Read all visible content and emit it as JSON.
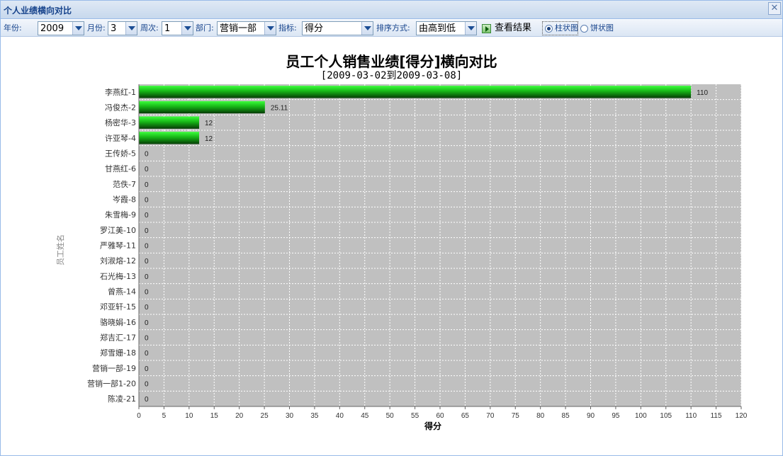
{
  "window": {
    "title": "个人业绩横向对比",
    "close_glyph": "✕"
  },
  "toolbar": {
    "year_label": "年份:",
    "year_value": "2009",
    "month_label": "月份:",
    "month_value": "3",
    "week_label": "周次:",
    "week_value": "1",
    "dept_label": "部门:",
    "dept_value": "营销一部",
    "metric_label": "指标:",
    "metric_value": "得分",
    "sort_label": "排序方式:",
    "sort_value": "由高到低",
    "view_button": "查看结果",
    "radio_bar": "柱状图",
    "radio_pie": "饼状图",
    "selected_chart": "bar"
  },
  "colors": {
    "plot_bg": "#c0c0c0",
    "bar_light": "#3cff3c",
    "bar_dark": "#063a06",
    "title_blue": "#15428b"
  },
  "chart_data": {
    "type": "bar",
    "orientation": "horizontal",
    "title": "员工个人销售业绩[得分]横向对比",
    "subtitle": "[2009-03-02到2009-03-08]",
    "xlabel": "得分",
    "ylabel": "员工姓名",
    "xlim": [
      0,
      120
    ],
    "xticks": [
      0,
      5,
      10,
      15,
      20,
      25,
      30,
      35,
      40,
      45,
      50,
      55,
      60,
      65,
      70,
      75,
      80,
      85,
      90,
      95,
      100,
      105,
      110,
      115,
      120
    ],
    "grid": true,
    "categories": [
      "李燕红-1",
      "冯俊杰-2",
      "杨密华-3",
      "许亚琴-4",
      "王传娇-5",
      "甘燕红-6",
      "范佚-7",
      "岑霞-8",
      "朱雪梅-9",
      "罗江美-10",
      "严雅琴-11",
      "刘淑熔-12",
      "石光梅-13",
      "曾燕-14",
      "邓亚轩-15",
      "骆晓娟-16",
      "郑吉汇-17",
      "郑雪姗-18",
      "营销一部-19",
      "营销一部1-20",
      "陈凌-21"
    ],
    "values": [
      110,
      25.11,
      12,
      12,
      0,
      0,
      0,
      0,
      0,
      0,
      0,
      0,
      0,
      0,
      0,
      0,
      0,
      0,
      0,
      0,
      0
    ],
    "value_labels": [
      "110",
      "25.11",
      "12",
      "12",
      "0",
      "0",
      "0",
      "0",
      "0",
      "0",
      "0",
      "0",
      "0",
      "0",
      "0",
      "0",
      "0",
      "0",
      "0",
      "0",
      "0"
    ]
  }
}
